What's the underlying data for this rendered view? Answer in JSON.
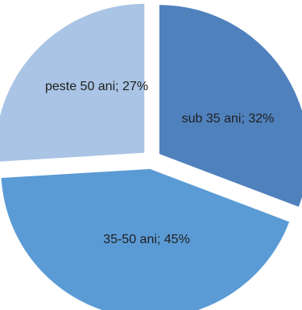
{
  "chart_data": {
    "type": "pie",
    "categories": [
      "sub 35 ani",
      "35-50 ani",
      "peste 50 ani"
    ],
    "values": [
      32,
      45,
      27
    ],
    "labels": [
      "sub 35 ani; 32%",
      "35-50 ani; 45%",
      "peste 50 ani; 27%"
    ],
    "colors": [
      "#4f81bd",
      "#5b9bd5",
      "#a9c4e4"
    ],
    "exploded": true,
    "legend": "none"
  }
}
